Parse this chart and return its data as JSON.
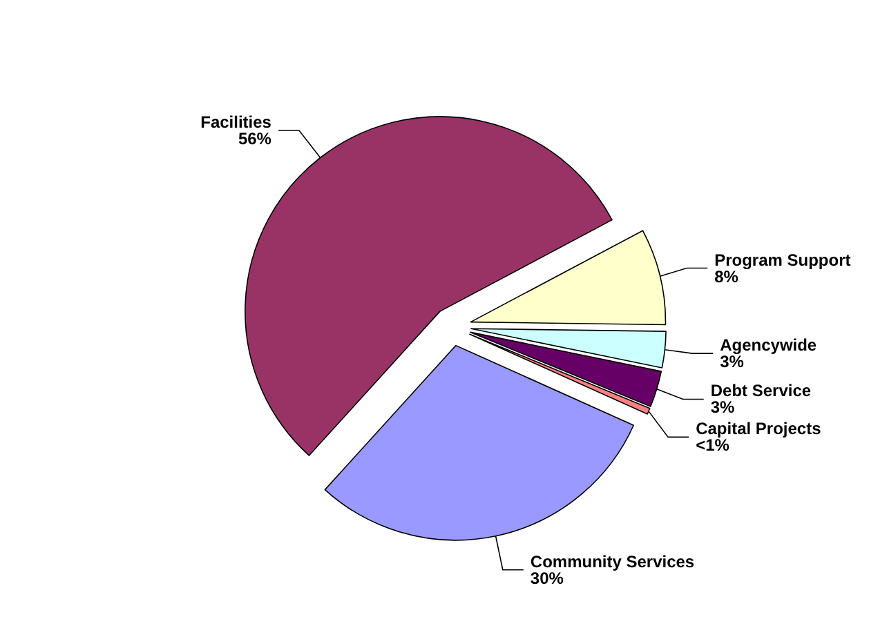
{
  "chart_data": {
    "type": "pie",
    "categories": [
      "Program Support",
      "Agencywide",
      "Debt Service",
      "Capital Projects",
      "Community Services",
      "Facilities"
    ],
    "values": [
      8,
      3,
      3,
      0.5,
      30,
      55.5
    ],
    "value_labels": [
      "8%",
      "3%",
      "3%",
      "<1%",
      "30%",
      "56%"
    ],
    "colors": [
      "#ffffcc",
      "#ccffff",
      "#660066",
      "#ff8080",
      "#9999ff",
      "#993366"
    ],
    "legend": false
  }
}
